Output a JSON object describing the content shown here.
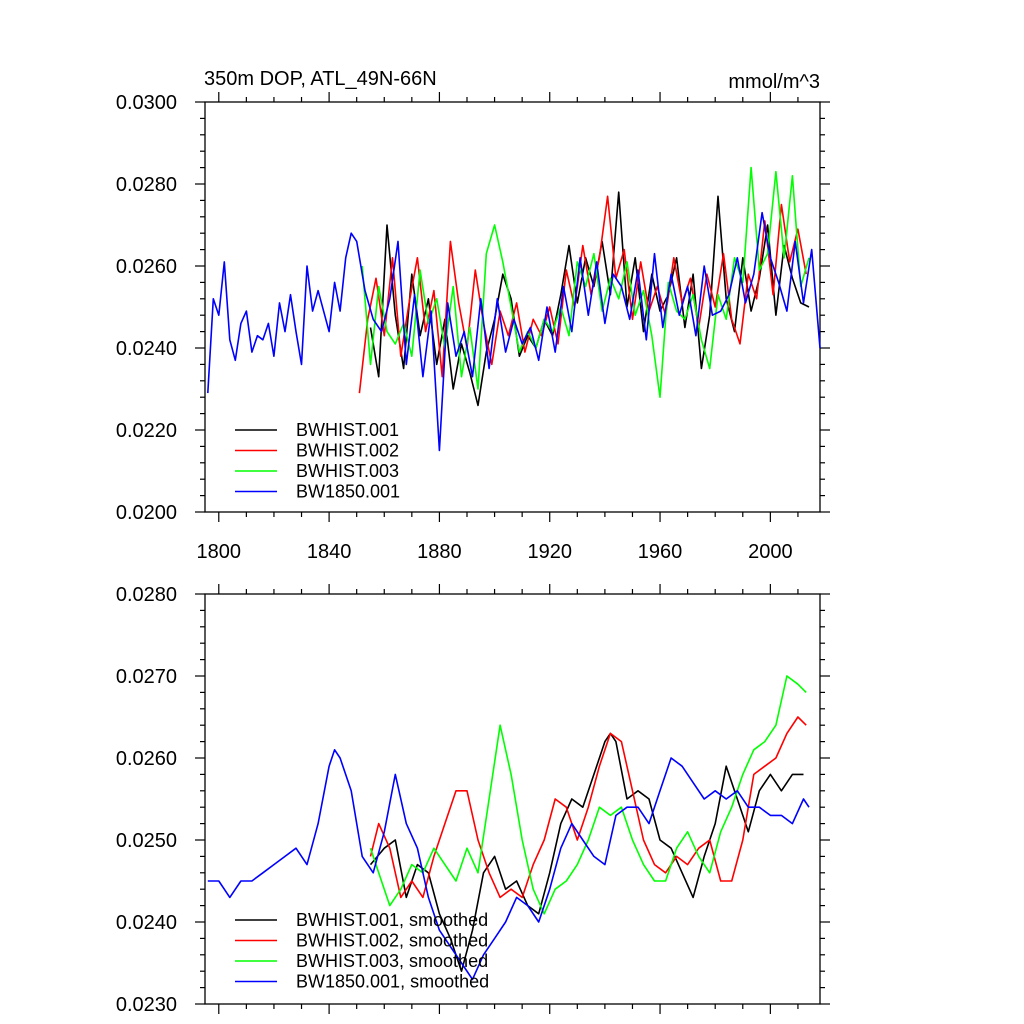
{
  "chart_data": [
    {
      "type": "line",
      "title": "350m DOP, ATL_49N-66N",
      "subtitle": "mmol/m^3",
      "xlabel": "",
      "ylabel": "",
      "xlim": [
        1795,
        2018
      ],
      "ylim": [
        0.02,
        0.03
      ],
      "xticks": [
        1800,
        1840,
        1880,
        1920,
        1960,
        2000
      ],
      "xtick_labels": [
        "1800",
        "1840",
        "1880",
        "1920",
        "1960",
        "2000"
      ],
      "yticks": [
        0.02,
        0.022,
        0.024,
        0.026,
        0.028,
        0.03
      ],
      "ytick_labels": [
        "0.0200",
        "0.0220",
        "0.0240",
        "0.0260",
        "0.0280",
        "0.0300"
      ],
      "grid": false,
      "legend_position": "bottom-left",
      "series": [
        {
          "name": "BWHIST.001",
          "color": "#000000",
          "x": [
            1855,
            1858,
            1861,
            1864,
            1867,
            1870,
            1873,
            1876,
            1879,
            1882,
            1885,
            1888,
            1891,
            1894,
            1897,
            1900,
            1903,
            1906,
            1909,
            1912,
            1915,
            1918,
            1921,
            1924,
            1927,
            1930,
            1933,
            1936,
            1939,
            1942,
            1945,
            1948,
            1951,
            1954,
            1957,
            1960,
            1963,
            1966,
            1969,
            1972,
            1975,
            1978,
            1981,
            1984,
            1987,
            1990,
            1993,
            1996,
            1999,
            2002,
            2005,
            2008,
            2011,
            2014
          ],
          "values": [
            0.0245,
            0.0233,
            0.027,
            0.0248,
            0.0235,
            0.0258,
            0.0243,
            0.0252,
            0.0236,
            0.0247,
            0.023,
            0.0241,
            0.0234,
            0.0226,
            0.0239,
            0.0247,
            0.0258,
            0.0252,
            0.0238,
            0.0243,
            0.024,
            0.0247,
            0.0243,
            0.0253,
            0.0265,
            0.0251,
            0.0262,
            0.0255,
            0.0266,
            0.0253,
            0.0278,
            0.025,
            0.0262,
            0.0244,
            0.0258,
            0.0249,
            0.0253,
            0.0262,
            0.0245,
            0.0258,
            0.0235,
            0.0248,
            0.0277,
            0.0252,
            0.0244,
            0.0262,
            0.0249,
            0.0257,
            0.027,
            0.0248,
            0.0265,
            0.0257,
            0.0251,
            0.025
          ]
        },
        {
          "name": "BWHIST.002",
          "color": "#ff0000",
          "x": [
            1851,
            1854,
            1857,
            1860,
            1863,
            1866,
            1869,
            1872,
            1875,
            1878,
            1881,
            1884,
            1887,
            1890,
            1893,
            1896,
            1899,
            1902,
            1905,
            1908,
            1911,
            1914,
            1917,
            1920,
            1923,
            1926,
            1929,
            1932,
            1935,
            1938,
            1941,
            1944,
            1947,
            1950,
            1953,
            1956,
            1959,
            1962,
            1965,
            1968,
            1971,
            1974,
            1977,
            1980,
            1983,
            1986,
            1989,
            1992,
            1995,
            1998,
            2001,
            2004,
            2007,
            2010,
            2013
          ],
          "values": [
            0.0229,
            0.0247,
            0.0257,
            0.0243,
            0.0262,
            0.0238,
            0.0251,
            0.0262,
            0.0244,
            0.0254,
            0.0233,
            0.0266,
            0.0251,
            0.024,
            0.0259,
            0.0246,
            0.0236,
            0.0249,
            0.0243,
            0.0251,
            0.0239,
            0.0247,
            0.0243,
            0.025,
            0.0241,
            0.0259,
            0.025,
            0.0265,
            0.0253,
            0.0262,
            0.0277,
            0.0257,
            0.0264,
            0.0247,
            0.0261,
            0.0249,
            0.0255,
            0.0248,
            0.0262,
            0.0251,
            0.0257,
            0.0245,
            0.0258,
            0.025,
            0.0263,
            0.0247,
            0.0241,
            0.0258,
            0.0252,
            0.0271,
            0.0253,
            0.0275,
            0.0261,
            0.0269,
            0.0258
          ]
        },
        {
          "name": "BWHIST.003",
          "color": "#00ff00",
          "x": [
            1852,
            1855,
            1858,
            1861,
            1864,
            1867,
            1870,
            1873,
            1876,
            1879,
            1882,
            1885,
            1888,
            1891,
            1894,
            1897,
            1900,
            1903,
            1906,
            1909,
            1912,
            1915,
            1918,
            1921,
            1924,
            1927,
            1930,
            1933,
            1936,
            1939,
            1942,
            1945,
            1948,
            1951,
            1954,
            1957,
            1960,
            1963,
            1966,
            1969,
            1972,
            1975,
            1978,
            1981,
            1984,
            1987,
            1990,
            1993,
            1996,
            1999,
            2002,
            2005,
            2008,
            2011,
            2014
          ],
          "values": [
            0.026,
            0.0236,
            0.0255,
            0.0244,
            0.0241,
            0.0246,
            0.0238,
            0.0259,
            0.0246,
            0.0252,
            0.024,
            0.0255,
            0.0233,
            0.0245,
            0.023,
            0.0263,
            0.027,
            0.0261,
            0.025,
            0.0239,
            0.0244,
            0.024,
            0.0247,
            0.0244,
            0.025,
            0.0243,
            0.0261,
            0.0255,
            0.0263,
            0.0249,
            0.0257,
            0.0252,
            0.0261,
            0.0248,
            0.0254,
            0.0243,
            0.0228,
            0.0256,
            0.0249,
            0.0247,
            0.0253,
            0.0242,
            0.0235,
            0.0253,
            0.0247,
            0.0262,
            0.0256,
            0.0284,
            0.0259,
            0.0263,
            0.0283,
            0.0262,
            0.0282,
            0.0255,
            0.0262
          ]
        },
        {
          "name": "BW1850.001",
          "color": "#0000ff",
          "x": [
            1796,
            1798,
            1800,
            1802,
            1804,
            1806,
            1808,
            1810,
            1812,
            1814,
            1816,
            1818,
            1820,
            1822,
            1824,
            1826,
            1828,
            1830,
            1832,
            1834,
            1836,
            1838,
            1840,
            1842,
            1844,
            1846,
            1848,
            1850,
            1853,
            1856,
            1859,
            1862,
            1865,
            1868,
            1871,
            1874,
            1877,
            1880,
            1883,
            1886,
            1889,
            1892,
            1895,
            1898,
            1901,
            1904,
            1907,
            1910,
            1913,
            1916,
            1919,
            1922,
            1925,
            1928,
            1931,
            1934,
            1937,
            1940,
            1943,
            1946,
            1949,
            1952,
            1955,
            1958,
            1961,
            1964,
            1967,
            1970,
            1973,
            1976,
            1979,
            1982,
            1985,
            1988,
            1991,
            1994,
            1997,
            2000,
            2003,
            2006,
            2009,
            2012,
            2015,
            2018
          ],
          "values": [
            0.0229,
            0.0252,
            0.0248,
            0.0261,
            0.0242,
            0.0237,
            0.0246,
            0.0249,
            0.0239,
            0.0243,
            0.0242,
            0.0246,
            0.0238,
            0.0251,
            0.0244,
            0.0253,
            0.0244,
            0.0236,
            0.026,
            0.0249,
            0.0254,
            0.0249,
            0.0244,
            0.0256,
            0.0249,
            0.0262,
            0.0268,
            0.0266,
            0.0254,
            0.0247,
            0.0244,
            0.0252,
            0.0266,
            0.0236,
            0.0253,
            0.0233,
            0.0249,
            0.0215,
            0.0251,
            0.0238,
            0.0244,
            0.0233,
            0.0252,
            0.0235,
            0.0252,
            0.0239,
            0.0247,
            0.0241,
            0.0245,
            0.0237,
            0.025,
            0.0239,
            0.0255,
            0.0244,
            0.0262,
            0.0248,
            0.0261,
            0.0246,
            0.0258,
            0.0255,
            0.0247,
            0.0259,
            0.0242,
            0.0263,
            0.0245,
            0.0258,
            0.0248,
            0.0255,
            0.0243,
            0.026,
            0.0248,
            0.0249,
            0.0253,
            0.0262,
            0.0251,
            0.0258,
            0.0273,
            0.0262,
            0.0256,
            0.0249,
            0.0266,
            0.0251,
            0.0264,
            0.024
          ]
        }
      ]
    },
    {
      "type": "line",
      "title": "",
      "xlabel": "",
      "ylabel": "",
      "xlim": [
        1795,
        2018
      ],
      "ylim": [
        0.023,
        0.028
      ],
      "xticks": [
        1800,
        1840,
        1880,
        1920,
        1960,
        2000
      ],
      "yticks": [
        0.023,
        0.024,
        0.025,
        0.026,
        0.027,
        0.028
      ],
      "ytick_labels": [
        "0.0230",
        "0.0240",
        "0.0250",
        "0.0260",
        "0.0270",
        "0.0280"
      ],
      "grid": false,
      "legend_position": "bottom-left",
      "series": [
        {
          "name": "BWHIST.001, smoothed",
          "color": "#000000",
          "x": [
            1855,
            1860,
            1864,
            1868,
            1872,
            1876,
            1880,
            1884,
            1888,
            1892,
            1896,
            1900,
            1904,
            1908,
            1912,
            1916,
            1920,
            1924,
            1928,
            1932,
            1936,
            1940,
            1942,
            1944,
            1948,
            1952,
            1956,
            1960,
            1964,
            1968,
            1972,
            1976,
            1980,
            1984,
            1988,
            1992,
            1996,
            2000,
            2004,
            2008,
            2012
          ],
          "values": [
            0.0247,
            0.0249,
            0.025,
            0.0243,
            0.0247,
            0.0246,
            0.0241,
            0.0238,
            0.0234,
            0.0239,
            0.0246,
            0.0248,
            0.0244,
            0.0245,
            0.0242,
            0.0241,
            0.0246,
            0.0252,
            0.0255,
            0.0254,
            0.0258,
            0.0262,
            0.0263,
            0.0262,
            0.0255,
            0.0256,
            0.0255,
            0.025,
            0.0249,
            0.0246,
            0.0243,
            0.0248,
            0.0252,
            0.0259,
            0.0255,
            0.0251,
            0.0256,
            0.0258,
            0.0256,
            0.0258,
            0.0258
          ]
        },
        {
          "name": "BWHIST.002, smoothed",
          "color": "#ff0000",
          "x": [
            1855,
            1858,
            1862,
            1866,
            1870,
            1874,
            1878,
            1882,
            1886,
            1890,
            1894,
            1898,
            1902,
            1906,
            1910,
            1914,
            1918,
            1922,
            1926,
            1930,
            1934,
            1938,
            1942,
            1946,
            1950,
            1954,
            1958,
            1962,
            1966,
            1970,
            1974,
            1978,
            1982,
            1986,
            1990,
            1994,
            1998,
            2002,
            2006,
            2010,
            2013
          ],
          "values": [
            0.0248,
            0.0252,
            0.0249,
            0.0243,
            0.0245,
            0.0243,
            0.0248,
            0.0252,
            0.0256,
            0.0256,
            0.025,
            0.0246,
            0.0243,
            0.0244,
            0.0243,
            0.0247,
            0.025,
            0.0255,
            0.0254,
            0.025,
            0.0254,
            0.0259,
            0.0263,
            0.0262,
            0.0256,
            0.025,
            0.0247,
            0.0246,
            0.0248,
            0.0247,
            0.0249,
            0.025,
            0.0245,
            0.0245,
            0.025,
            0.0258,
            0.0259,
            0.026,
            0.0263,
            0.0265,
            0.0264
          ]
        },
        {
          "name": "BWHIST.003, smoothed",
          "color": "#00ff00",
          "x": [
            1855,
            1858,
            1862,
            1866,
            1870,
            1874,
            1878,
            1882,
            1886,
            1890,
            1894,
            1898,
            1902,
            1906,
            1910,
            1914,
            1918,
            1922,
            1926,
            1930,
            1934,
            1938,
            1942,
            1946,
            1950,
            1954,
            1958,
            1962,
            1966,
            1970,
            1974,
            1978,
            1982,
            1986,
            1990,
            1994,
            1998,
            2002,
            2006,
            2010,
            2013
          ],
          "values": [
            0.0249,
            0.0246,
            0.0242,
            0.0244,
            0.0247,
            0.0246,
            0.0249,
            0.0247,
            0.0245,
            0.0249,
            0.0246,
            0.0255,
            0.0264,
            0.0258,
            0.025,
            0.0244,
            0.0241,
            0.0244,
            0.0245,
            0.0247,
            0.025,
            0.0254,
            0.0253,
            0.0254,
            0.025,
            0.0247,
            0.0245,
            0.0245,
            0.0249,
            0.0251,
            0.0248,
            0.0246,
            0.0251,
            0.0254,
            0.0258,
            0.0261,
            0.0262,
            0.0264,
            0.027,
            0.0269,
            0.0268
          ]
        },
        {
          "name": "BW1850.001, smoothed",
          "color": "#0000ff",
          "x": [
            1796,
            1800,
            1804,
            1808,
            1812,
            1816,
            1820,
            1824,
            1828,
            1832,
            1836,
            1840,
            1842,
            1844,
            1848,
            1852,
            1856,
            1860,
            1864,
            1868,
            1872,
            1876,
            1880,
            1884,
            1888,
            1892,
            1896,
            1900,
            1904,
            1908,
            1912,
            1916,
            1920,
            1924,
            1928,
            1932,
            1936,
            1940,
            1944,
            1948,
            1952,
            1956,
            1960,
            1964,
            1968,
            1972,
            1976,
            1980,
            1984,
            1988,
            1992,
            1996,
            2000,
            2004,
            2008,
            2012,
            2014
          ],
          "values": [
            0.0245,
            0.0245,
            0.0243,
            0.0245,
            0.0245,
            0.0246,
            0.0247,
            0.0248,
            0.0249,
            0.0247,
            0.0252,
            0.0259,
            0.0261,
            0.026,
            0.0256,
            0.0248,
            0.0246,
            0.0251,
            0.0258,
            0.0252,
            0.0249,
            0.0243,
            0.0239,
            0.0237,
            0.0235,
            0.0233,
            0.0236,
            0.0238,
            0.024,
            0.0243,
            0.0242,
            0.024,
            0.0244,
            0.0249,
            0.0252,
            0.025,
            0.0248,
            0.0247,
            0.0253,
            0.0254,
            0.0254,
            0.0252,
            0.0256,
            0.026,
            0.0259,
            0.0257,
            0.0255,
            0.0256,
            0.0255,
            0.0256,
            0.0254,
            0.0254,
            0.0253,
            0.0253,
            0.0252,
            0.0255,
            0.0254
          ]
        }
      ]
    }
  ]
}
